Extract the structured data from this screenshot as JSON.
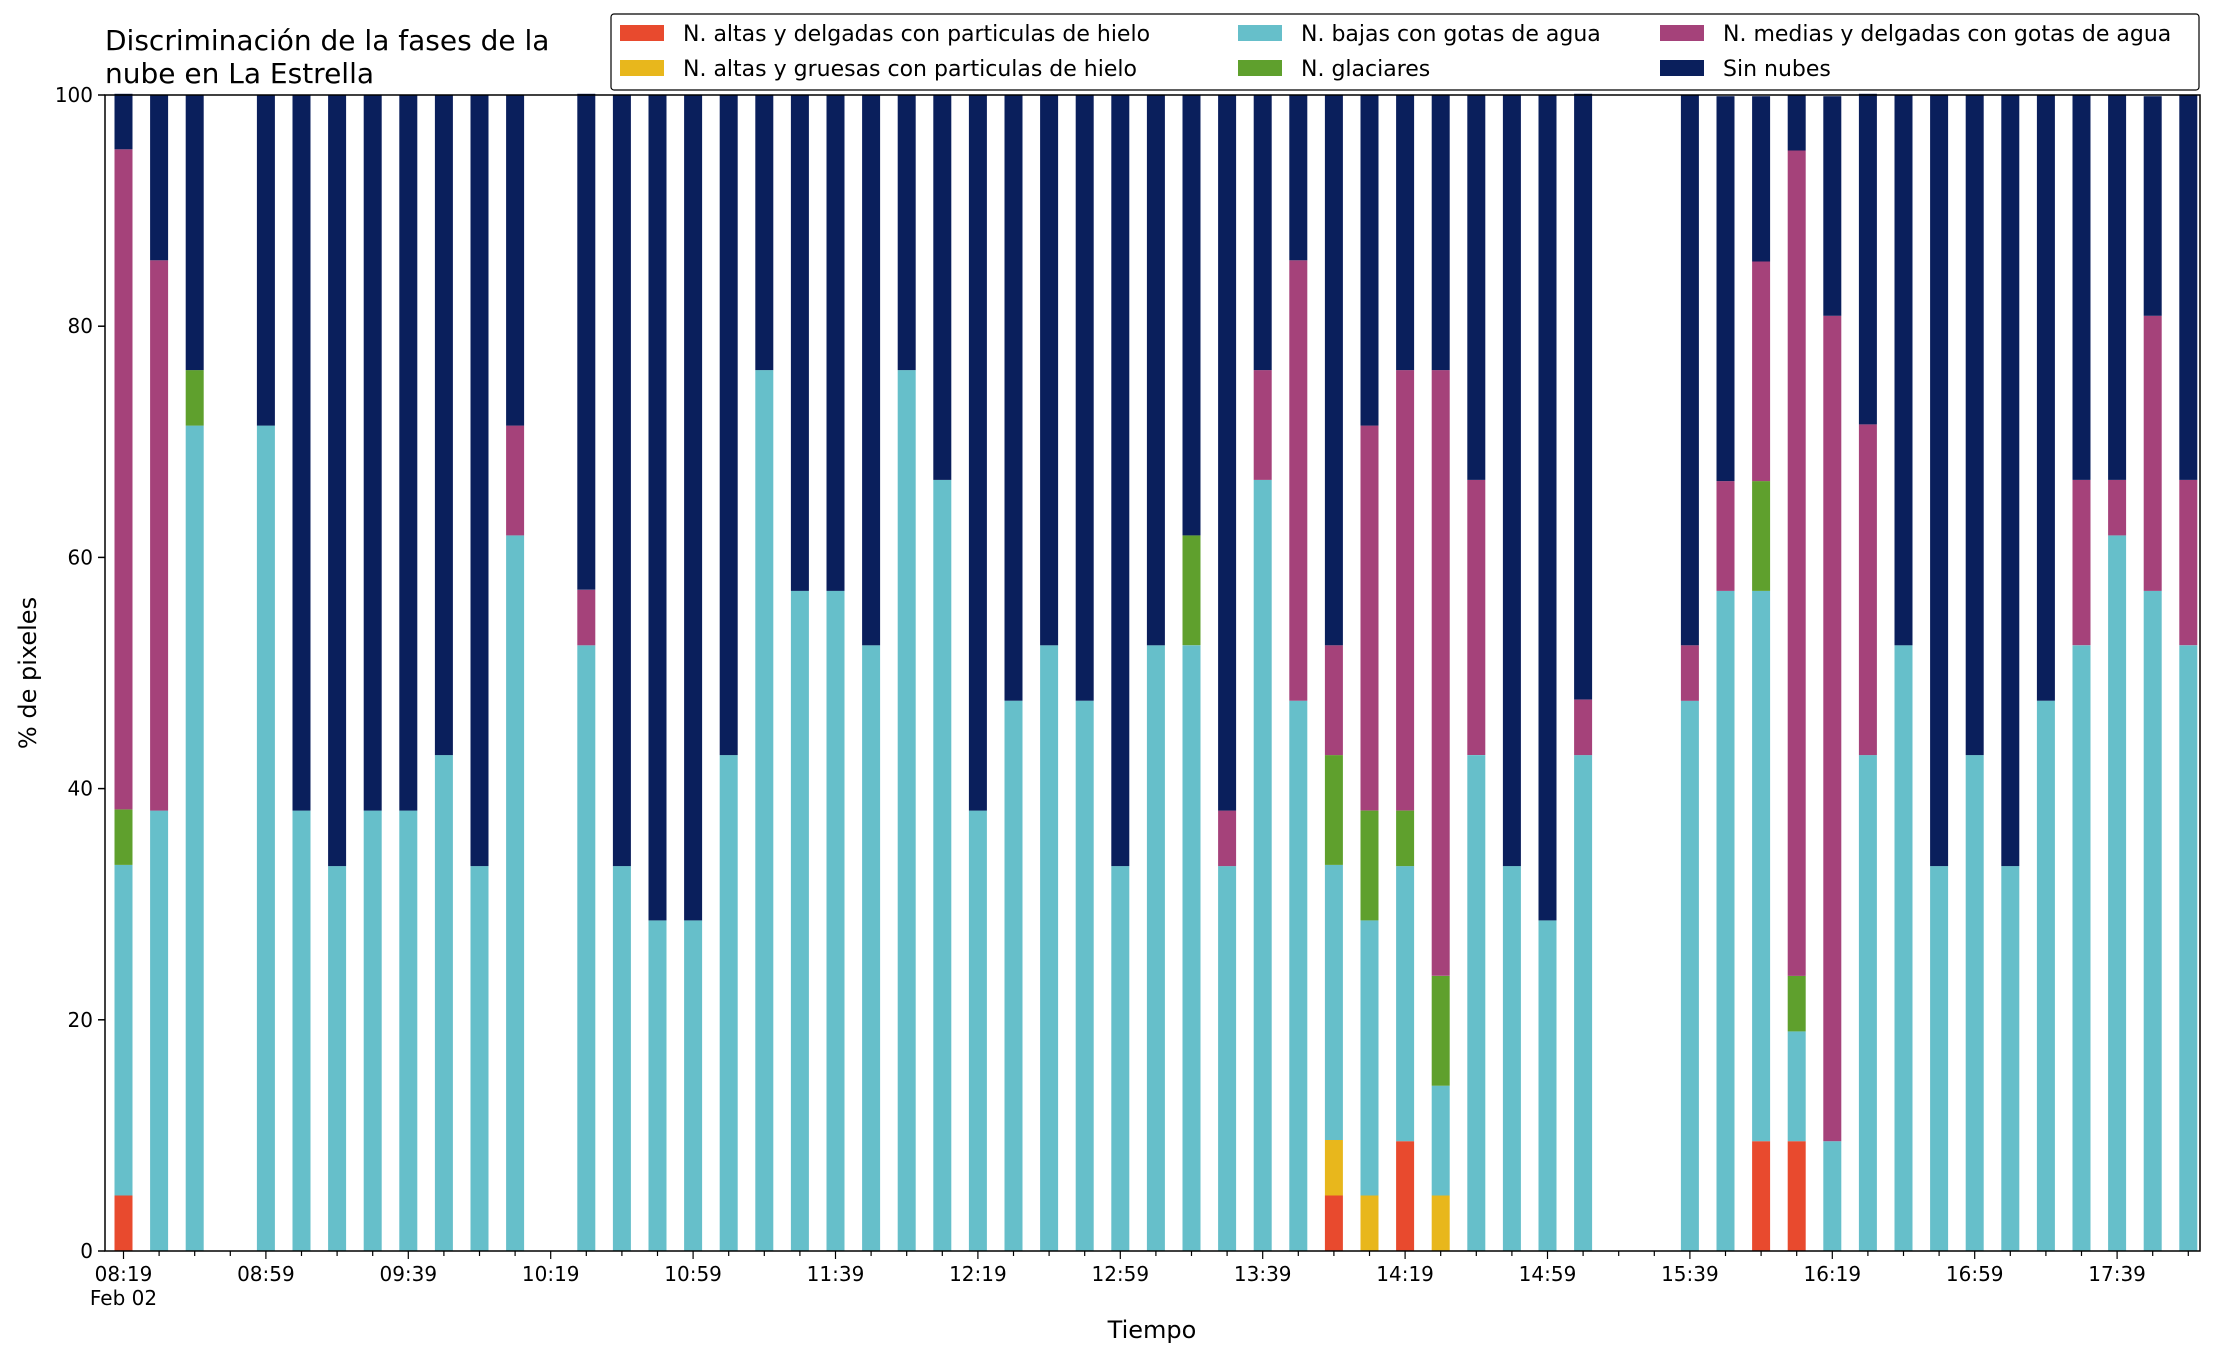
{
  "chart_data": {
    "type": "bar",
    "stacked": true,
    "title_lines": [
      "Discriminación de la fases de la",
      "nube en La Estrella"
    ],
    "xlabel": "Tiempo",
    "ylabel": "% de pixeles",
    "ylim": [
      0,
      100
    ],
    "yticks": [
      0,
      20,
      40,
      60,
      80,
      100
    ],
    "legend_position": "top-right",
    "legend": [
      {
        "name": "N. altas y delgadas con particulas de hielo",
        "color": "#e84a2e"
      },
      {
        "name": "N. altas y gruesas con particulas de hielo",
        "color": "#e8b71c"
      },
      {
        "name": "N. bajas con gotas de agua",
        "color": "#66bfca"
      },
      {
        "name": "N. glaciares",
        "color": "#5fa02d"
      },
      {
        "name": "N. medias y delgadas con gotas de agua",
        "color": "#a5427a"
      },
      {
        "name": "Sin nubes",
        "color": "#0a1f5c"
      }
    ],
    "x_tick_labels": [
      "08:19",
      "08:59",
      "09:39",
      "10:19",
      "10:59",
      "11:39",
      "12:19",
      "12:59",
      "13:39",
      "14:19",
      "14:59",
      "15:39",
      "16:19",
      "16:59",
      "17:39"
    ],
    "x_date_label": "Feb 02",
    "x_label_every": 4,
    "time_start": "08:19",
    "time_step_minutes": 10,
    "categories": [
      "08:19",
      "08:29",
      "08:39",
      "08:49",
      "08:59",
      "09:09",
      "09:19",
      "09:29",
      "09:39",
      "09:49",
      "09:59",
      "10:09",
      "10:19",
      "10:29",
      "10:39",
      "10:49",
      "10:59",
      "11:09",
      "11:19",
      "11:29",
      "11:39",
      "11:49",
      "11:59",
      "12:09",
      "12:19",
      "12:29",
      "12:39",
      "12:49",
      "12:59",
      "13:09",
      "13:19",
      "13:29",
      "13:39",
      "13:49",
      "13:59",
      "14:09",
      "14:19",
      "14:29",
      "14:39",
      "14:49",
      "14:59",
      "15:09",
      "15:19",
      "15:29",
      "15:39",
      "15:49",
      "15:59",
      "16:09",
      "16:19",
      "16:29",
      "16:39",
      "16:49",
      "16:59",
      "17:09",
      "17:19",
      "17:29",
      "17:39",
      "17:49",
      "17:59"
    ],
    "series": [
      {
        "name": "N. altas y delgadas con particulas de hielo",
        "color": "#e84a2e",
        "values": [
          4.8,
          0,
          0,
          null,
          0,
          0,
          0,
          0,
          0,
          0,
          0,
          0,
          null,
          0,
          0,
          0,
          0,
          0,
          0,
          0,
          0,
          0,
          0,
          0,
          0,
          0,
          0,
          0,
          0,
          0,
          0,
          0,
          0,
          0,
          4.8,
          0,
          9.5,
          0,
          0,
          0,
          0,
          0,
          null,
          null,
          0,
          0,
          9.5,
          9.5,
          0,
          0,
          0,
          0,
          0,
          0,
          0,
          0,
          0,
          0,
          0
        ]
      },
      {
        "name": "N. altas y gruesas con particulas de hielo",
        "color": "#e8b71c",
        "values": [
          0,
          0,
          0,
          null,
          0,
          0,
          0,
          0,
          0,
          0,
          0,
          0,
          null,
          0,
          0,
          0,
          0,
          0,
          0,
          0,
          0,
          0,
          0,
          0,
          0,
          0,
          0,
          0,
          0,
          0,
          0,
          0,
          0,
          0,
          4.8,
          4.8,
          0,
          4.8,
          0,
          0,
          0,
          0,
          null,
          null,
          0,
          0,
          0,
          0,
          0,
          0,
          0,
          0,
          0,
          0,
          0,
          0,
          0,
          0,
          0
        ]
      },
      {
        "name": "N. bajas con gotas de agua",
        "color": "#66bfca",
        "values": [
          28.6,
          38.1,
          71.4,
          null,
          71.4,
          38.1,
          33.3,
          38.1,
          38.1,
          42.9,
          33.3,
          61.9,
          null,
          52.4,
          33.3,
          28.6,
          28.6,
          42.9,
          76.2,
          57.1,
          57.1,
          52.4,
          76.2,
          66.7,
          38.1,
          47.6,
          52.4,
          47.6,
          33.3,
          52.4,
          52.4,
          33.3,
          66.7,
          47.6,
          23.8,
          23.8,
          23.8,
          9.5,
          42.9,
          33.3,
          28.6,
          42.9,
          null,
          null,
          47.6,
          57.1,
          47.6,
          9.5,
          9.5,
          42.9,
          52.4,
          33.3,
          42.9,
          33.3,
          47.6,
          52.4,
          61.9,
          57.1,
          52.4
        ]
      },
      {
        "name": "N. glaciares",
        "color": "#5fa02d",
        "values": [
          4.8,
          0,
          4.8,
          null,
          0,
          0,
          0,
          0,
          0,
          0,
          0,
          0,
          null,
          0,
          0,
          0,
          0,
          0,
          0,
          0,
          0,
          0,
          0,
          0,
          0,
          0,
          0,
          0,
          0,
          0,
          9.5,
          0,
          0,
          0,
          9.5,
          9.5,
          4.8,
          9.5,
          0,
          0,
          0,
          0,
          null,
          null,
          0,
          0,
          9.5,
          4.8,
          0,
          0,
          0,
          0,
          0,
          0,
          0,
          0,
          0,
          0,
          0
        ]
      },
      {
        "name": "N. medias y delgadas con gotas de agua",
        "color": "#a5427a",
        "values": [
          57.1,
          47.6,
          0,
          null,
          0,
          0,
          0,
          0,
          0,
          0,
          0,
          9.5,
          null,
          4.8,
          0,
          0,
          0,
          0,
          0,
          0,
          0,
          0,
          0,
          0,
          0,
          0,
          0,
          0,
          0,
          0,
          0,
          4.8,
          9.5,
          38.1,
          9.5,
          33.3,
          38.1,
          52.4,
          23.8,
          0,
          0,
          4.8,
          null,
          null,
          4.8,
          9.5,
          19.0,
          71.4,
          71.4,
          28.6,
          0,
          0,
          0,
          0,
          0,
          14.3,
          4.8,
          23.8,
          14.3
        ]
      },
      {
        "name": "Sin nubes",
        "color": "#0a1f5c",
        "values": [
          4.8,
          14.3,
          23.8,
          null,
          28.6,
          61.9,
          66.7,
          61.9,
          61.9,
          57.1,
          66.7,
          28.6,
          null,
          42.9,
          66.7,
          71.4,
          71.4,
          57.1,
          23.8,
          42.9,
          42.9,
          47.6,
          23.8,
          33.3,
          61.9,
          52.4,
          47.6,
          52.4,
          66.7,
          47.6,
          38.1,
          61.9,
          23.8,
          14.3,
          47.6,
          28.6,
          23.8,
          23.8,
          33.3,
          66.7,
          71.4,
          52.4,
          null,
          null,
          47.6,
          33.3,
          14.3,
          4.8,
          19.0,
          28.6,
          47.6,
          66.7,
          57.1,
          66.7,
          52.4,
          33.3,
          33.3,
          19.0,
          33.3
        ]
      }
    ]
  }
}
